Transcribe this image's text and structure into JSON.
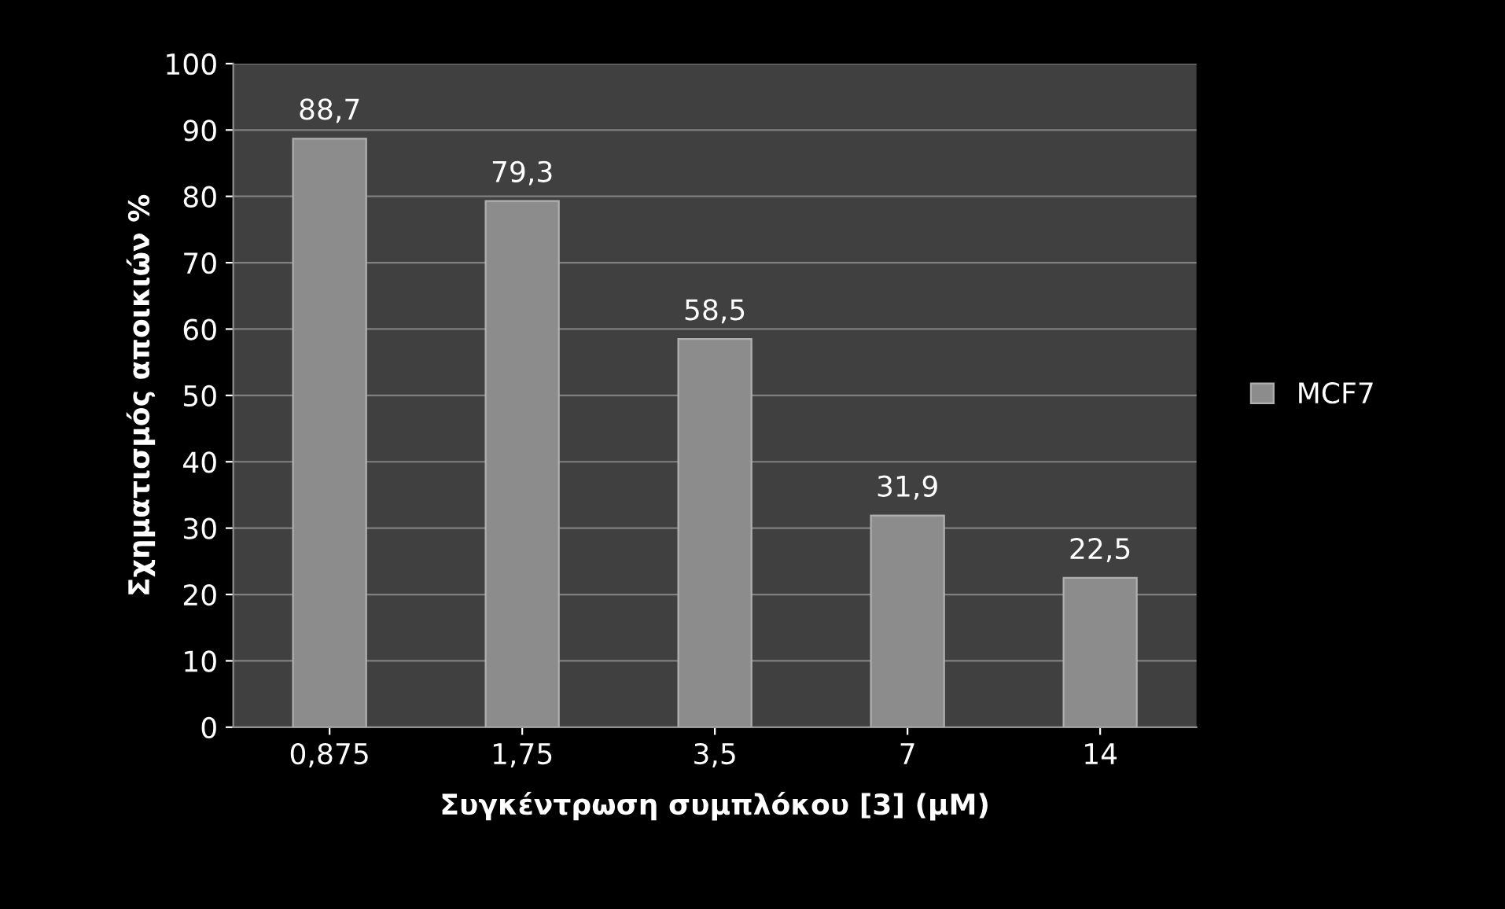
{
  "chart_data": {
    "type": "bar",
    "xlabel": "Συγκέντρωση συμπλόκου [3] (μM)",
    "ylabel": "Σχηματισμός αποικιών %",
    "categories": [
      "0,875",
      "1,75",
      "3,5",
      "7",
      "14"
    ],
    "series": [
      {
        "name": "MCF7",
        "color": "#8c8c8c",
        "values": [
          88.7,
          79.3,
          58.5,
          31.9,
          22.5
        ],
        "value_labels": [
          "88,7",
          "79,3",
          "58,5",
          "31,9",
          "22,5"
        ]
      }
    ],
    "ylim": [
      0,
      100
    ],
    "yticks": [
      0,
      10,
      20,
      30,
      40,
      50,
      60,
      70,
      80,
      90,
      100
    ],
    "grid": "y",
    "legend": "right"
  }
}
